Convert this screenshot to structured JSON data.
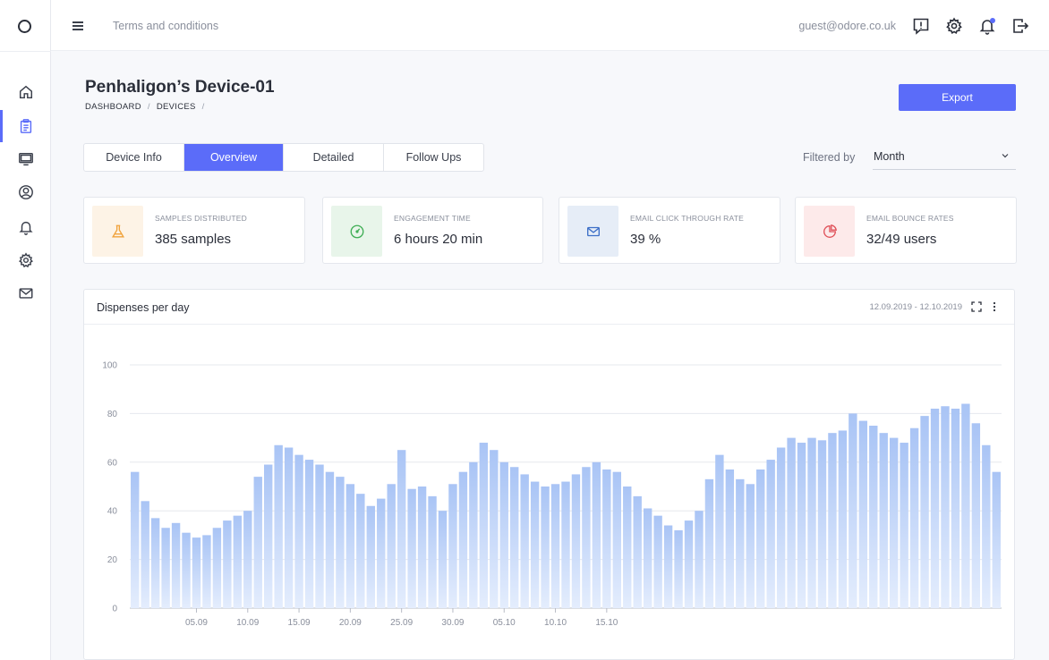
{
  "topbar": {
    "link": "Terms and conditions",
    "user_email": "guest@odore.co.uk",
    "icons": [
      "alert-icon",
      "gear-icon",
      "bell-icon",
      "logout-icon"
    ]
  },
  "sidebar": {
    "items": [
      {
        "icon": "home-icon",
        "active": false
      },
      {
        "icon": "clipboard-icon",
        "active": true
      },
      {
        "icon": "monitor-icon",
        "active": false
      },
      {
        "icon": "user-icon",
        "active": false
      },
      {
        "icon": "bell-icon",
        "active": false
      },
      {
        "icon": "gear-icon",
        "active": false
      },
      {
        "icon": "mail-icon",
        "active": false
      }
    ]
  },
  "header": {
    "title": "Penhaligon’s Device-01",
    "breadcrumb": [
      "DASHBOARD",
      "DEVICES"
    ],
    "export_label": "Export"
  },
  "tabs": [
    {
      "label": "Device Info",
      "active": false
    },
    {
      "label": "Overview",
      "active": true
    },
    {
      "label": "Detailed",
      "active": false
    },
    {
      "label": "Follow Ups",
      "active": false
    }
  ],
  "filter": {
    "label": "Filtered by",
    "value": "Month"
  },
  "cards": [
    {
      "label": "SAMPLES DISTRIBUTED",
      "value": "385 samples",
      "icon": "flask-icon",
      "bg": "#fdf3e6",
      "color": "#f0a23b"
    },
    {
      "label": "ENGAGEMENT TIME",
      "value": "6 hours  20 min",
      "icon": "gauge-icon",
      "bg": "#e8f5ea",
      "color": "#3fae55"
    },
    {
      "label": "EMAIL CLICK THROUGH RATE",
      "value": "39 %",
      "icon": "mail-icon",
      "bg": "#e6edf7",
      "color": "#3d6fc7"
    },
    {
      "label": "EMAIL BOUNCE RATES",
      "value": "32/49 users",
      "icon": "pie-icon",
      "bg": "#fdeaea",
      "color": "#e0525a"
    }
  ],
  "chart_panel": {
    "title": "Dispenses per day",
    "date_range": "12.09.2019 - 12.10.2019"
  },
  "chart_data": {
    "type": "bar",
    "ylim": [
      0,
      100
    ],
    "yticks": [
      0,
      20,
      40,
      60,
      80,
      100
    ],
    "xtick_labels": [
      "05.09",
      "10.09",
      "15.09",
      "20.09",
      "25.09",
      "30.09",
      "05.10",
      "10.10",
      "15.10"
    ],
    "xtick_index": [
      6,
      11,
      16,
      21,
      26,
      31,
      36,
      41,
      46
    ],
    "bar_color": "#a9c4f5",
    "values": [
      56,
      44,
      37,
      33,
      35,
      31,
      29,
      30,
      33,
      36,
      38,
      40,
      54,
      59,
      67,
      66,
      63,
      61,
      59,
      56,
      54,
      51,
      47,
      42,
      45,
      51,
      65,
      49,
      50,
      46,
      40,
      51,
      56,
      60,
      68,
      65,
      60,
      58,
      55,
      52,
      50,
      51,
      52,
      55,
      58,
      60,
      57,
      56,
      50,
      46,
      41,
      38,
      34,
      32,
      36,
      40,
      53,
      63,
      57,
      53,
      51,
      57,
      61,
      66,
      70,
      68,
      70,
      69,
      72,
      73,
      80,
      77,
      75,
      72,
      70,
      68,
      74,
      79,
      82,
      83,
      82,
      84,
      76,
      67,
      56
    ]
  }
}
